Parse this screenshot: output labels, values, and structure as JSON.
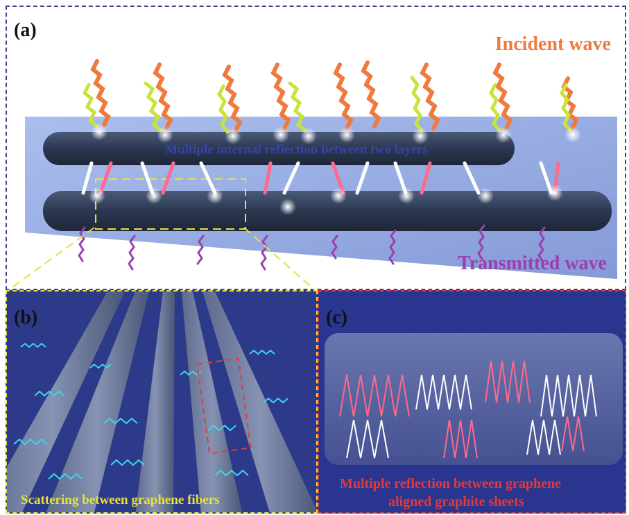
{
  "panel_a": {
    "label": "(a)",
    "incident_label": "Incident wave",
    "internal_label": "Multiple internal reflection between two  layers",
    "transmitted_label": "Transmitted wave"
  },
  "panel_b": {
    "label": "(b)",
    "caption": "Scattering between graphene fibers"
  },
  "panel_c": {
    "label": "(c)",
    "caption_line1": "Multiple reflection between graphene",
    "caption_line2": "aligned graphite sheets"
  },
  "colors": {
    "frame_a": "#3b3f9a",
    "frame_b": "#e6e23a",
    "frame_c": "#e23a3a",
    "incident": "#f07a3c",
    "transmitted": "#9a3fb0",
    "caption_b": "#e6e23a",
    "caption_c": "#e23a3a"
  }
}
